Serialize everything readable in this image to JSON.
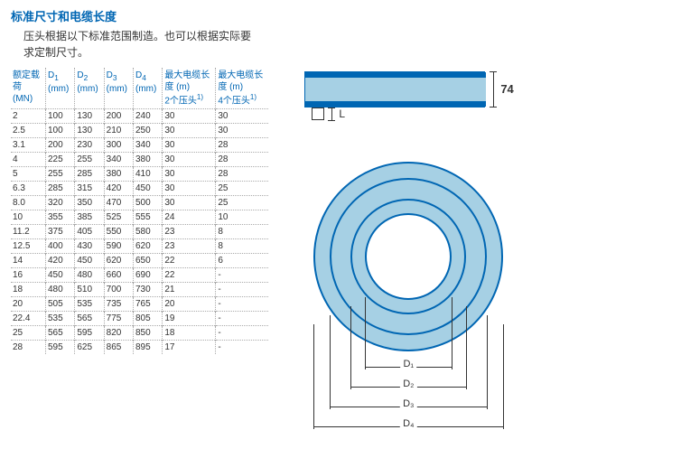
{
  "title": "标准尺寸和电缆长度",
  "intro_line1": "压头根据以下标准范围制造。也可以根据实际要",
  "intro_line2": "求定制尺寸。",
  "headers": {
    "c0a": "额定载",
    "c0b": "荷",
    "c0c": "(MN)",
    "c1a": "D",
    "c1s": "1",
    "c1b": "(mm)",
    "c2a": "D",
    "c2s": "2",
    "c2b": "(mm)",
    "c3a": "D",
    "c3s": "3",
    "c3b": "(mm)",
    "c4a": "D",
    "c4s": "4",
    "c4b": "(mm)",
    "c5a": "最大电缆长",
    "c5b": "度 (m)",
    "c5c": "2个压头",
    "c6a": "最大电缆长",
    "c6b": "度 (m)",
    "c6c": "4个压头",
    "sup": "1)"
  },
  "rows": [
    [
      "2",
      "100",
      "130",
      "200",
      "240",
      "30",
      "30"
    ],
    [
      "2.5",
      "100",
      "130",
      "210",
      "250",
      "30",
      "30"
    ],
    [
      "3.1",
      "200",
      "230",
      "300",
      "340",
      "30",
      "28"
    ],
    [
      "4",
      "225",
      "255",
      "340",
      "380",
      "30",
      "28"
    ],
    [
      "5",
      "255",
      "285",
      "380",
      "410",
      "30",
      "28"
    ],
    [
      "6.3",
      "285",
      "315",
      "420",
      "450",
      "30",
      "25"
    ],
    [
      "8.0",
      "320",
      "350",
      "470",
      "500",
      "30",
      "25"
    ],
    [
      "10",
      "355",
      "385",
      "525",
      "555",
      "24",
      "10"
    ],
    [
      "11.2",
      "375",
      "405",
      "550",
      "580",
      "23",
      "8"
    ],
    [
      "12.5",
      "400",
      "430",
      "590",
      "620",
      "23",
      "8"
    ],
    [
      "14",
      "420",
      "450",
      "620",
      "650",
      "22",
      "6"
    ],
    [
      "16",
      "450",
      "480",
      "660",
      "690",
      "22",
      "-"
    ],
    [
      "18",
      "480",
      "510",
      "700",
      "730",
      "21",
      "-"
    ],
    [
      "20",
      "505",
      "535",
      "735",
      "765",
      "20",
      "-"
    ],
    [
      "22.4",
      "535",
      "565",
      "775",
      "805",
      "19",
      "-"
    ],
    [
      "25",
      "565",
      "595",
      "820",
      "850",
      "18",
      "-"
    ],
    [
      "28",
      "595",
      "625",
      "865",
      "895",
      "17",
      "-"
    ]
  ],
  "diagram": {
    "height_label": "74",
    "L_label": "L",
    "d1": "D₁",
    "d2": "D₂",
    "d3": "D₃",
    "d4": "D₄",
    "colors": {
      "stroke": "#0066b3",
      "fill_light": "#a6d0e4",
      "fill_dark": "#0066b3"
    }
  }
}
